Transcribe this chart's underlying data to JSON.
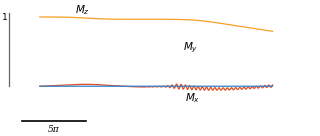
{
  "figsize": [
    3.2,
    1.36
  ],
  "dpi": 100,
  "mz_color": "#F5A020",
  "my_color": "#E05020",
  "mx_color": "#3080D0",
  "axis_color": "#666666",
  "ytick_val": 1,
  "bar_label": "5π",
  "xlim": [
    -20.0,
    55.0
  ],
  "ylim": [
    -0.55,
    1.2
  ]
}
